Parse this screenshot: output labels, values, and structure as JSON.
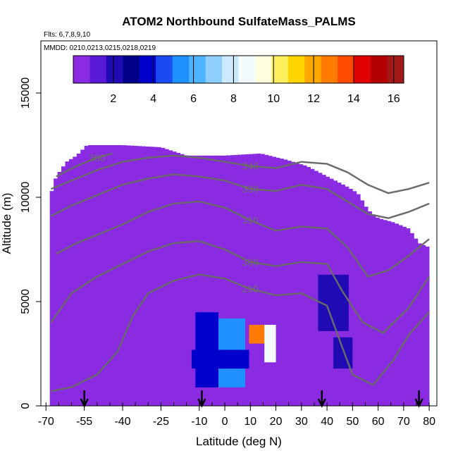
{
  "chart_data": {
    "type": "heatmap",
    "title": "ATOM2 Northbound SulfateMass_PALMS",
    "flights_label": "Flts: 6,7,8,9,10",
    "dates_label": "MMDD: 0210,0213,0215,0218,0219",
    "xlabel": "Latitude (deg N)",
    "ylabel": "Altitude (m)",
    "xlim": [
      -72,
      83
    ],
    "ylim": [
      0,
      17500
    ],
    "x_ticks": [
      -70,
      -55,
      -40,
      -25,
      -10,
      0,
      10,
      20,
      30,
      40,
      50,
      60,
      70,
      80
    ],
    "x_tick_labels": [
      "-70",
      "-55",
      "-40",
      "-25",
      "-10",
      "0",
      "10",
      "20",
      "30",
      "40",
      "50",
      "60",
      "70",
      "80"
    ],
    "y_ticks": [
      0,
      5000,
      10000,
      15000
    ],
    "y_tick_labels": [
      "0",
      "5000",
      "10000",
      "15000"
    ],
    "colorbar": {
      "range": [
        0,
        16.5
      ],
      "tick_values": [
        2,
        4,
        6,
        8,
        10,
        12,
        14,
        16
      ],
      "tick_labels": [
        "2",
        "4",
        "6",
        "8",
        "10",
        "12",
        "14",
        "16"
      ],
      "colors": [
        "#8a2be2",
        "#5a18d8",
        "#1f0ab4",
        "#00008b",
        "#0000cd",
        "#1a4bf0",
        "#1e90ff",
        "#4fb4ff",
        "#8ecfff",
        "#cde9ff",
        "#f4fbff",
        "#ffffe0",
        "#ffee60",
        "#ffd400",
        "#ffa800",
        "#ff7a00",
        "#ff4a00",
        "#e00000",
        "#b40000",
        "#a01818"
      ]
    },
    "grid": false,
    "legend_position": "top",
    "background_value": 0.8,
    "hot_spots": [
      {
        "lat_min": -12,
        "lat_max": -3,
        "alt_min": 1000,
        "alt_max": 4500,
        "value": 4
      },
      {
        "lat_min": -2,
        "lat_max": 8,
        "alt_min": 1000,
        "alt_max": 4200,
        "value": 5
      },
      {
        "lat_min": -13,
        "lat_max": 10,
        "alt_min": 1700,
        "alt_max": 2600,
        "value": 3.5
      },
      {
        "lat_min": 10,
        "lat_max": 15,
        "alt_min": 3000,
        "alt_max": 3900,
        "value": 13
      },
      {
        "lat_min": 15,
        "lat_max": 20,
        "alt_min": 2100,
        "alt_max": 3900,
        "value": 9
      },
      {
        "lat_min": 36,
        "lat_max": 48,
        "alt_min": 3700,
        "alt_max": 6300,
        "value": 2.2
      },
      {
        "lat_min": 42,
        "lat_max": 50,
        "alt_min": 1700,
        "alt_max": 3300,
        "value": 2.0
      }
    ],
    "contours": [
      {
        "label": "290",
        "points": [
          [
            -68,
            700
          ],
          [
            -60,
            900
          ],
          [
            -50,
            1500
          ],
          [
            -42,
            2600
          ],
          [
            -36,
            4300
          ],
          [
            -30,
            5400
          ],
          [
            -20,
            6000
          ],
          [
            -10,
            6300
          ],
          [
            0,
            6100
          ],
          [
            10,
            5600
          ],
          [
            20,
            5300
          ],
          [
            30,
            5400
          ],
          [
            40,
            4800
          ],
          [
            46,
            2800
          ],
          [
            50,
            1500
          ],
          [
            58,
            1000
          ],
          [
            66,
            2200
          ],
          [
            72,
            3400
          ],
          [
            80,
            4500
          ]
        ]
      },
      {
        "label": "300",
        "points": [
          [
            -68,
            4000
          ],
          [
            -60,
            5400
          ],
          [
            -50,
            6200
          ],
          [
            -40,
            6800
          ],
          [
            -30,
            7400
          ],
          [
            -20,
            7800
          ],
          [
            -10,
            7900
          ],
          [
            0,
            7500
          ],
          [
            10,
            6900
          ],
          [
            20,
            6700
          ],
          [
            30,
            6900
          ],
          [
            40,
            6800
          ],
          [
            46,
            5500
          ],
          [
            54,
            4000
          ],
          [
            62,
            3500
          ],
          [
            72,
            4700
          ],
          [
            80,
            6200
          ]
        ]
      },
      {
        "label": "310",
        "points": [
          [
            -66,
            7300
          ],
          [
            -58,
            7800
          ],
          [
            -50,
            8200
          ],
          [
            -40,
            8700
          ],
          [
            -30,
            9300
          ],
          [
            -20,
            9700
          ],
          [
            -10,
            9800
          ],
          [
            0,
            9500
          ],
          [
            10,
            8900
          ],
          [
            20,
            8400
          ],
          [
            30,
            8600
          ],
          [
            40,
            8500
          ],
          [
            48,
            7600
          ],
          [
            56,
            6200
          ],
          [
            64,
            6500
          ],
          [
            72,
            7200
          ],
          [
            80,
            8000
          ]
        ]
      },
      {
        "label": "330",
        "points": [
          [
            -68,
            9100
          ],
          [
            -60,
            9600
          ],
          [
            -50,
            10100
          ],
          [
            -40,
            10600
          ],
          [
            -30,
            10900
          ],
          [
            -20,
            11100
          ],
          [
            -10,
            11000
          ],
          [
            0,
            10800
          ],
          [
            10,
            10400
          ],
          [
            20,
            10300
          ],
          [
            30,
            10600
          ],
          [
            40,
            10400
          ],
          [
            48,
            9800
          ],
          [
            56,
            9200
          ],
          [
            64,
            9000
          ],
          [
            72,
            9300
          ],
          [
            80,
            9700
          ]
        ]
      },
      {
        "label": "340",
        "points": [
          [
            -68,
            10400
          ],
          [
            -60,
            10800
          ],
          [
            -50,
            11300
          ],
          [
            -40,
            11700
          ],
          [
            -30,
            11900
          ],
          [
            -20,
            12000
          ],
          [
            -10,
            11900
          ],
          [
            0,
            11700
          ],
          [
            10,
            11500
          ],
          [
            20,
            11400
          ],
          [
            30,
            11700
          ],
          [
            40,
            11600
          ],
          [
            48,
            11200
          ],
          [
            56,
            10600
          ],
          [
            64,
            10200
          ],
          [
            72,
            10400
          ],
          [
            80,
            10700
          ]
        ]
      },
      {
        "label": "350",
        "points": [
          [
            -66,
            11000
          ],
          [
            -58,
            11500
          ],
          [
            -50,
            11900
          ],
          [
            -44,
            12100
          ]
        ]
      }
    ],
    "flight_arrows_lat": [
      -55,
      -9,
      38,
      76
    ]
  }
}
